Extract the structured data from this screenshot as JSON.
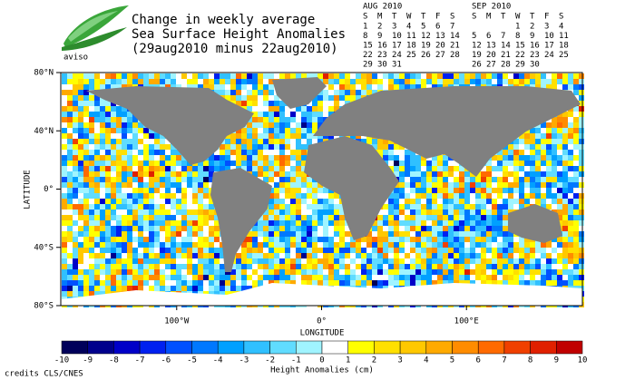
{
  "header": {
    "logo_text": "aviso",
    "title_lines": [
      "Change in weekly average",
      "Sea Surface Height Anomalies",
      "(29aug2010 minus 22aug2010)"
    ]
  },
  "calendars": [
    {
      "month": "AUG 2010",
      "weekdays": [
        "S",
        "M",
        "T",
        "W",
        "T",
        "F",
        "S"
      ],
      "highlight_color": "#1a1aa0",
      "weeks": [
        {
          "days": [
            1,
            2,
            3,
            4,
            5,
            6,
            7
          ]
        },
        {
          "days": [
            8,
            9,
            10,
            11,
            12,
            13,
            14
          ]
        },
        {
          "days": [
            15,
            16,
            17,
            18,
            19,
            20,
            21
          ]
        },
        {
          "days": [
            22,
            23,
            24,
            25,
            26,
            27,
            28
          ],
          "highlight": true
        },
        {
          "days": [
            29,
            30,
            31
          ],
          "highlight": true
        }
      ]
    },
    {
      "month": "SEP 2010",
      "weekdays": [
        "S",
        "M",
        "T",
        "W",
        "T",
        "F",
        "S"
      ],
      "highlight_color": "#1a1aa0",
      "weeks": [
        {
          "days": [
            null,
            null,
            null,
            1,
            2,
            3,
            4
          ],
          "highlight": true
        },
        {
          "days": [
            5,
            6,
            7,
            8,
            9,
            10,
            11
          ]
        },
        {
          "days": [
            12,
            13,
            14,
            15,
            16,
            17,
            18
          ]
        },
        {
          "days": [
            19,
            20,
            21,
            22,
            23,
            24,
            25
          ]
        },
        {
          "days": [
            26,
            27,
            28,
            29,
            30
          ]
        }
      ]
    }
  ],
  "map": {
    "xlabel": "LONGITUDE",
    "ylabel": "LATITUDE",
    "xlim": [
      -180,
      180
    ],
    "ylim": [
      -80,
      80
    ],
    "xticks": [
      {
        "value": -100,
        "label": "100°W"
      },
      {
        "value": 0,
        "label": "0°"
      },
      {
        "value": 100,
        "label": "100°E"
      }
    ],
    "yticks": [
      {
        "value": 80,
        "label": "80°N"
      },
      {
        "value": 40,
        "label": "40°N"
      },
      {
        "value": 0,
        "label": "0°"
      },
      {
        "value": -40,
        "label": "40°S"
      },
      {
        "value": -80,
        "label": "80°S"
      }
    ]
  },
  "colorbar": {
    "title": "Height Anomalies (cm)",
    "edges": [
      -10,
      -9,
      -8,
      -7,
      -6,
      -5,
      -4,
      -3,
      -2,
      -1,
      0,
      1,
      2,
      3,
      4,
      5,
      6,
      7,
      8,
      9,
      10
    ],
    "colors": [
      "#00005a",
      "#00008c",
      "#0000c8",
      "#0020f0",
      "#0050ff",
      "#0078ff",
      "#00a0ff",
      "#30c0ff",
      "#60dcff",
      "#a0f4ff",
      "#ffffff",
      "#ffff00",
      "#ffe000",
      "#ffc800",
      "#ffaa00",
      "#ff8c00",
      "#ff6a00",
      "#f04000",
      "#e02000",
      "#c00000"
    ]
  },
  "credits": "credits CLS/CNES"
}
